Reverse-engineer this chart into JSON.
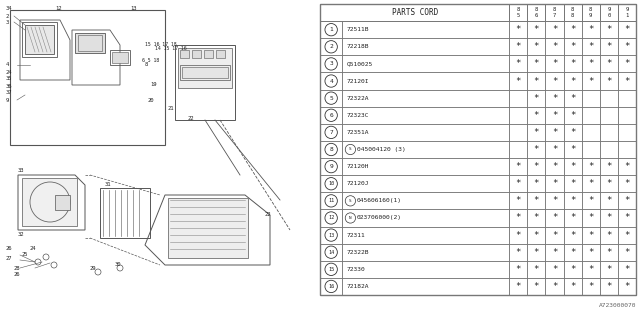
{
  "title": "A723000070",
  "parts_cord_header": "PARTS CORD",
  "col_headers": [
    "85",
    "86",
    "87",
    "88",
    "89",
    "90",
    "91"
  ],
  "rows": [
    {
      "num": "1",
      "special": "",
      "code": "72511B",
      "stars": [
        1,
        1,
        1,
        1,
        1,
        1,
        1
      ]
    },
    {
      "num": "2",
      "special": "",
      "code": "72218B",
      "stars": [
        1,
        1,
        1,
        1,
        1,
        1,
        1
      ]
    },
    {
      "num": "3",
      "special": "",
      "code": "Q510025",
      "stars": [
        1,
        1,
        1,
        1,
        1,
        1,
        1
      ]
    },
    {
      "num": "4",
      "special": "",
      "code": "72120I",
      "stars": [
        1,
        1,
        1,
        1,
        1,
        1,
        1
      ]
    },
    {
      "num": "5",
      "special": "",
      "code": "72322A",
      "stars": [
        0,
        1,
        1,
        1,
        0,
        0,
        0
      ]
    },
    {
      "num": "6",
      "special": "",
      "code": "72323C",
      "stars": [
        0,
        1,
        1,
        1,
        0,
        0,
        0
      ]
    },
    {
      "num": "7",
      "special": "",
      "code": "72351A",
      "stars": [
        0,
        1,
        1,
        1,
        0,
        0,
        0
      ]
    },
    {
      "num": "8",
      "special": "S",
      "code": "045004120 (3)",
      "stars": [
        0,
        1,
        1,
        1,
        0,
        0,
        0
      ]
    },
    {
      "num": "9",
      "special": "",
      "code": "72120H",
      "stars": [
        1,
        1,
        1,
        1,
        1,
        1,
        1
      ]
    },
    {
      "num": "10",
      "special": "",
      "code": "72120J",
      "stars": [
        1,
        1,
        1,
        1,
        1,
        1,
        1
      ]
    },
    {
      "num": "11",
      "special": "S",
      "code": "045606160(1)",
      "stars": [
        1,
        1,
        1,
        1,
        1,
        1,
        1
      ]
    },
    {
      "num": "12",
      "special": "N",
      "code": "023706000(2)",
      "stars": [
        1,
        1,
        1,
        1,
        1,
        1,
        1
      ]
    },
    {
      "num": "13",
      "special": "",
      "code": "72311",
      "stars": [
        1,
        1,
        1,
        1,
        1,
        1,
        1
      ]
    },
    {
      "num": "14",
      "special": "",
      "code": "72322B",
      "stars": [
        1,
        1,
        1,
        1,
        1,
        1,
        1
      ]
    },
    {
      "num": "15",
      "special": "",
      "code": "72330",
      "stars": [
        1,
        1,
        1,
        1,
        1,
        1,
        1
      ]
    },
    {
      "num": "16",
      "special": "",
      "code": "72182A",
      "stars": [
        1,
        1,
        1,
        1,
        1,
        1,
        1
      ]
    }
  ],
  "bg_color": "#ffffff",
  "line_color": "#555555",
  "text_color": "#222222",
  "table_line_color": "#777777"
}
